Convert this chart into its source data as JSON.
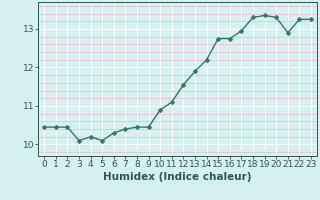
{
  "x": [
    0,
    1,
    2,
    3,
    4,
    5,
    6,
    7,
    8,
    9,
    10,
    11,
    12,
    13,
    14,
    15,
    16,
    17,
    18,
    19,
    20,
    21,
    22,
    23
  ],
  "y": [
    10.45,
    10.45,
    10.45,
    10.1,
    10.2,
    10.1,
    10.3,
    10.4,
    10.45,
    10.45,
    10.9,
    11.1,
    11.55,
    11.9,
    12.2,
    12.75,
    12.75,
    12.95,
    13.3,
    13.35,
    13.3,
    12.9,
    13.25,
    13.25
  ],
  "line_color": "#2d7a6e",
  "marker": "D",
  "marker_size": 2.5,
  "bg_color": "#d6eff0",
  "grid_major_color": "#ffffff",
  "grid_minor_color": "#f0b8b8",
  "xlabel": "Humidex (Indice chaleur)",
  "xlim": [
    -0.5,
    23.5
  ],
  "ylim": [
    9.7,
    13.7
  ],
  "yticks": [
    10,
    11,
    12,
    13
  ],
  "xticks": [
    0,
    1,
    2,
    3,
    4,
    5,
    6,
    7,
    8,
    9,
    10,
    11,
    12,
    13,
    14,
    15,
    16,
    17,
    18,
    19,
    20,
    21,
    22,
    23
  ],
  "xlabel_fontsize": 7.5,
  "tick_fontsize": 6.5,
  "tick_color": "#2d5a52",
  "spine_color": "#2d5a52"
}
